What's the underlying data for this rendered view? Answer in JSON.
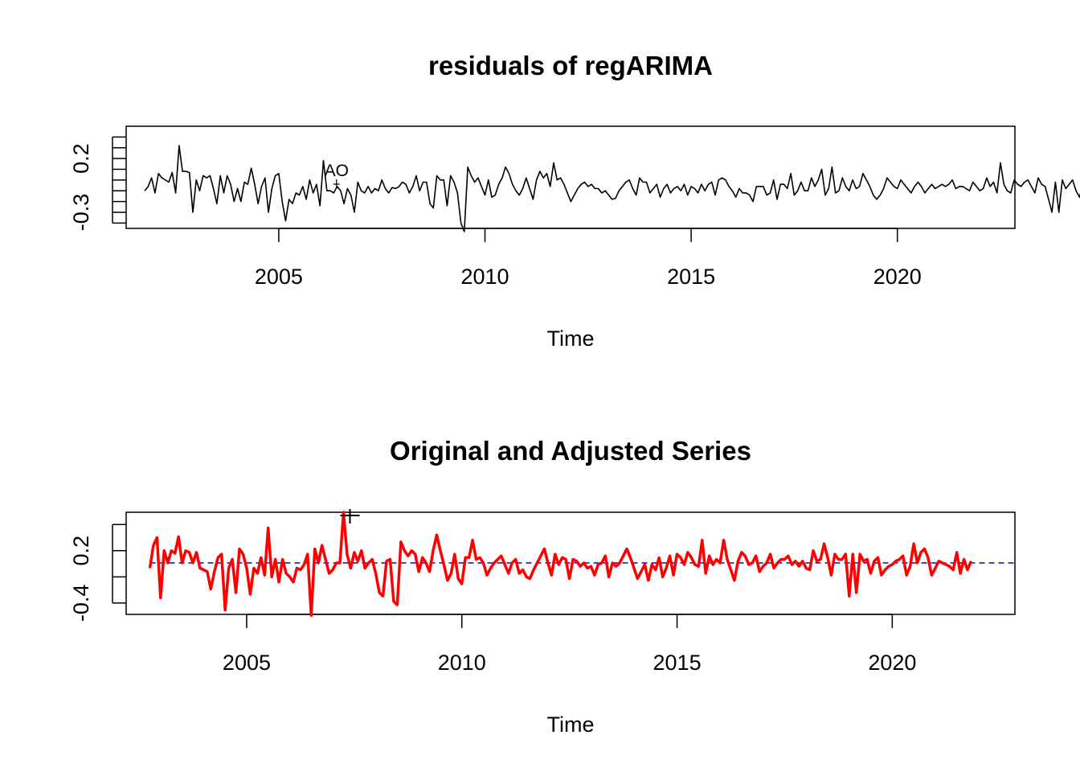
{
  "chart_data": [
    {
      "type": "line",
      "title": "residuals of regARIMA",
      "xlabel": "Time",
      "ylabel": "",
      "xlim": [
        2001.3,
        2022.85
      ],
      "ylim": [
        -0.45,
        0.5
      ],
      "x_ticks": [
        2005,
        2010,
        2015,
        2020
      ],
      "x_tick_labels": [
        "2005",
        "2010",
        "2015",
        "2020"
      ],
      "y_ticks": [
        -0.4,
        -0.3,
        -0.2,
        -0.1,
        0.0,
        0.1,
        0.2,
        0.3,
        0.4
      ],
      "y_tick_labels": [
        {
          "value": -0.3,
          "label": "-0.3"
        },
        {
          "value": 0.2,
          "label": "0.2"
        }
      ],
      "grid": false,
      "legend": "none",
      "series": [
        {
          "color": "#000000",
          "start": 2001.75,
          "step": 0.08333,
          "values": [
            -0.1,
            -0.06,
            0.02,
            -0.12,
            0.06,
            0.02,
            0.0,
            -0.02,
            0.07,
            -0.12,
            0.32,
            0.08,
            0.08,
            0.07,
            -0.3,
            0.0,
            -0.1,
            0.04,
            0.02,
            0.04,
            -0.08,
            -0.22,
            0.04,
            -0.12,
            0.04,
            -0.04,
            -0.2,
            -0.08,
            -0.2,
            -0.02,
            -0.04,
            0.11,
            -0.04,
            -0.22,
            -0.06,
            0.02,
            -0.3,
            -0.08,
            0.04,
            0.06,
            -0.2,
            -0.38,
            -0.18,
            -0.22,
            -0.12,
            -0.14,
            -0.06,
            -0.18,
            0.0,
            -0.12,
            -0.04,
            -0.24,
            0.18,
            -0.1,
            -0.1,
            -0.12,
            -0.06,
            -0.1,
            -0.22,
            -0.08,
            -0.14,
            -0.3,
            -0.02,
            -0.1,
            -0.12,
            -0.06,
            -0.12,
            -0.08,
            -0.1,
            0.0,
            -0.08,
            -0.12,
            -0.07,
            -0.08,
            -0.06,
            -0.02,
            -0.04,
            -0.12,
            -0.06,
            0.04,
            -0.1,
            -0.02,
            -0.02,
            -0.22,
            -0.26,
            0.04,
            0.0,
            0.0,
            -0.24,
            0.04,
            -0.02,
            -0.12,
            -0.4,
            -0.48,
            0.12,
            0.04,
            -0.02,
            0.02,
            -0.06,
            -0.14,
            0.0,
            -0.16,
            -0.14,
            -0.04,
            0.02,
            0.12,
            0.06,
            -0.04,
            -0.1,
            -0.14,
            -0.08,
            0.02,
            -0.08,
            -0.18,
            0.0,
            0.08,
            0.02,
            0.06,
            -0.06,
            0.16,
            0.0,
            0.02,
            -0.04,
            -0.12,
            -0.2,
            -0.14,
            -0.08,
            -0.04,
            -0.02,
            -0.06,
            -0.04,
            -0.08,
            -0.08,
            -0.12,
            -0.1,
            -0.14,
            -0.18,
            -0.17,
            -0.1,
            -0.06,
            -0.02,
            0.0,
            -0.08,
            -0.14,
            0.02,
            -0.02,
            -0.02,
            -0.12,
            -0.08,
            -0.04,
            -0.16,
            -0.08,
            -0.04,
            -0.12,
            -0.08,
            -0.06,
            -0.1,
            -0.04,
            -0.14,
            -0.06,
            -0.08,
            -0.12,
            -0.04,
            -0.1,
            -0.04,
            -0.02,
            -0.14,
            0.0,
            0.02,
            0.0,
            -0.06,
            -0.1,
            -0.16,
            -0.08,
            -0.12,
            -0.12,
            -0.14,
            -0.2,
            -0.06,
            -0.06,
            -0.06,
            -0.14,
            -0.12,
            0.0,
            -0.18,
            -0.04,
            -0.04,
            -0.08,
            0.06,
            -0.14,
            -0.1,
            -0.02,
            -0.1,
            -0.1,
            0.02,
            -0.06,
            0.0,
            0.1,
            -0.14,
            -0.08,
            0.12,
            -0.12,
            -0.1,
            0.02,
            -0.06,
            -0.1,
            0.0,
            -0.08,
            -0.06,
            0.06,
            0.0,
            -0.06,
            -0.14,
            -0.18,
            -0.14,
            -0.08,
            0.02,
            -0.02,
            -0.06,
            -0.08,
            0.0,
            -0.04,
            -0.08,
            -0.12,
            -0.06,
            -0.02,
            -0.06,
            -0.12,
            -0.08,
            -0.04,
            -0.08,
            -0.06,
            -0.04,
            -0.06,
            -0.04,
            0.0,
            -0.08,
            -0.06,
            -0.06,
            -0.08,
            -0.1,
            -0.02,
            -0.06,
            -0.1,
            -0.08,
            0.02,
            -0.06,
            -0.02,
            -0.12,
            0.16,
            -0.04,
            -0.1,
            -0.12,
            0.0,
            -0.04,
            -0.06,
            -0.02,
            0.0,
            -0.06,
            -0.12,
            0.02,
            -0.04,
            -0.06,
            -0.18,
            -0.3,
            -0.02,
            -0.3,
            0.0,
            -0.08,
            -0.04,
            0.0,
            -0.1,
            -0.16,
            -0.04,
            -0.04,
            -0.12,
            -0.12,
            -0.1,
            -0.12,
            -0.1,
            -0.08,
            -0.04,
            -0.04,
            -0.1,
            0.0,
            -0.06,
            0.08,
            -0.04,
            -0.02,
            0.02,
            -0.06,
            -0.12,
            -0.2,
            -0.1,
            -0.06,
            -0.04,
            -0.04,
            -0.12,
            -0.12,
            -0.14,
            -0.1,
            0.02,
            -0.16,
            -0.04,
            -0.14,
            -0.08,
            -0.02
          ]
        }
      ],
      "annotations": [
        {
          "text": "AO",
          "x": 2006.4
        }
      ]
    },
    {
      "type": "line",
      "title": "Original and Adjusted Series",
      "xlabel": "Time",
      "ylabel": "",
      "xlim": [
        2002.2,
        2022.85
      ],
      "ylim": [
        -0.53,
        0.64
      ],
      "x_ticks": [
        2005,
        2010,
        2015,
        2020
      ],
      "x_tick_labels": [
        "2005",
        "2010",
        "2015",
        "2020"
      ],
      "y_ticks": [
        -0.4,
        -0.1,
        0.2,
        0.5
      ],
      "y_tick_labels": [
        {
          "value": -0.4,
          "label": "-0.4"
        },
        {
          "value": 0.2,
          "label": "0.2"
        }
      ],
      "grid": false,
      "legend": "none",
      "series": [
        {
          "color": "#0000ff",
          "style": "dashed",
          "start": 2002.75,
          "step": 0.08333,
          "values": [
            0.06,
            0.06,
            0.06,
            0.06,
            0.06,
            0.06,
            0.06,
            0.06,
            0.06,
            0.06,
            0.06,
            0.06,
            0.06,
            0.06,
            0.06,
            0.06,
            0.06,
            0.06,
            0.06,
            0.06,
            0.06,
            0.06,
            0.06,
            0.06,
            0.06,
            0.06,
            0.06,
            0.06,
            0.06,
            0.06,
            0.06,
            0.06,
            0.06,
            0.06,
            0.06,
            0.06,
            0.06,
            0.06,
            0.06,
            0.06,
            0.06,
            0.06,
            0.06,
            0.06,
            0.06,
            0.06,
            0.06,
            0.06,
            0.06,
            0.06,
            0.06,
            0.06,
            0.06,
            0.06,
            0.06,
            0.06,
            0.06,
            0.06,
            0.06,
            0.06,
            0.06,
            0.06,
            0.06,
            0.06,
            0.06,
            0.06,
            0.06,
            0.06,
            0.06,
            0.06,
            0.06,
            0.06,
            0.06,
            0.06,
            0.06,
            0.06,
            0.06,
            0.06,
            0.06,
            0.06,
            0.06,
            0.06,
            0.06,
            0.06,
            0.06,
            0.06,
            0.06,
            0.06,
            0.06,
            0.06,
            0.06,
            0.06,
            0.06,
            0.06,
            0.06,
            0.06,
            0.06,
            0.06,
            0.06,
            0.06,
            0.06,
            0.06,
            0.06,
            0.06,
            0.06,
            0.06,
            0.06,
            0.06,
            0.06,
            0.06,
            0.06,
            0.06,
            0.06,
            0.06,
            0.06,
            0.06,
            0.06,
            0.06,
            0.06,
            0.06,
            0.06,
            0.06,
            0.06,
            0.06,
            0.06,
            0.06,
            0.06,
            0.06,
            0.06,
            0.06,
            0.06,
            0.06,
            0.06,
            0.06,
            0.06,
            0.06,
            0.06,
            0.06,
            0.06,
            0.06,
            0.06,
            0.06,
            0.06,
            0.06,
            0.06,
            0.06,
            0.06,
            0.06,
            0.06,
            0.06,
            0.06,
            0.06,
            0.06,
            0.06,
            0.06,
            0.06,
            0.06,
            0.06,
            0.06,
            0.06,
            0.06,
            0.06,
            0.06,
            0.06,
            0.06,
            0.06,
            0.06,
            0.06,
            0.06,
            0.06,
            0.06,
            0.06,
            0.06,
            0.06,
            0.06,
            0.06,
            0.06,
            0.06,
            0.06,
            0.06,
            0.06,
            0.06,
            0.06,
            0.06,
            0.06,
            0.06,
            0.06,
            0.06,
            0.06,
            0.06,
            0.06,
            0.06,
            0.06,
            0.06,
            0.06,
            0.06,
            0.06,
            0.06,
            0.06,
            0.06,
            0.06,
            0.06,
            0.06,
            0.06,
            0.06,
            0.06,
            0.06,
            0.06,
            0.06,
            0.06,
            0.06,
            0.06,
            0.06,
            0.06,
            0.06,
            0.06,
            0.06,
            0.06,
            0.06,
            0.06,
            0.06,
            0.06,
            0.06,
            0.06,
            0.06,
            0.06,
            0.06,
            0.06,
            0.06,
            0.06,
            0.06,
            0.06,
            0.06,
            0.06,
            0.06,
            0.06,
            0.06,
            0.06,
            0.06,
            0.06,
            0.06,
            0.06
          ]
        },
        {
          "color": "#ff0000",
          "start": 2002.75,
          "step": 0.08333,
          "values": [
            0.0,
            0.26,
            0.35,
            -0.34,
            0.2,
            0.06,
            0.2,
            0.17,
            0.36,
            0.06,
            0.2,
            0.18,
            0.06,
            0.18,
            0.0,
            -0.02,
            -0.04,
            -0.24,
            -0.04,
            0.12,
            0.16,
            -0.48,
            0.0,
            0.1,
            -0.28,
            0.22,
            0.16,
            0.0,
            -0.3,
            0.0,
            -0.06,
            0.12,
            -0.08,
            0.46,
            -0.1,
            0.1,
            -0.16,
            0.1,
            -0.06,
            -0.1,
            -0.16,
            0.0,
            -0.02,
            0.04,
            0.16,
            -0.54,
            0.22,
            0.06,
            0.26,
            0.1,
            -0.06,
            -0.02,
            0.06,
            0.06,
            0.64,
            0.16,
            0.0,
            0.18,
            0.08,
            0.2,
            0.0,
            0.06,
            0.1,
            -0.06,
            -0.28,
            -0.32,
            0.08,
            0.1,
            -0.38,
            -0.42,
            0.3,
            0.2,
            0.14,
            0.2,
            0.16,
            -0.04,
            0.12,
            0.06,
            -0.04,
            0.2,
            0.38,
            0.2,
            0.04,
            -0.14,
            -0.06,
            0.16,
            -0.12,
            -0.18,
            0.12,
            0.12,
            0.32,
            0.1,
            0.12,
            0.06,
            -0.08,
            0.0,
            0.06,
            0.1,
            0.14,
            0.04,
            -0.06,
            0.06,
            0.1,
            -0.06,
            -0.02,
            -0.1,
            -0.12,
            -0.02,
            0.06,
            0.14,
            0.22,
            0.06,
            -0.08,
            0.16,
            0.04,
            0.12,
            0.1,
            -0.12,
            0.1,
            0.08,
            0.02,
            0.06,
            0.0,
            0.02,
            -0.08,
            0.04,
            0.06,
            0.14,
            -0.1,
            0.06,
            0.02,
            0.06,
            0.14,
            0.22,
            0.12,
            0.0,
            -0.12,
            -0.04,
            0.04,
            -0.14,
            0.04,
            -0.02,
            0.12,
            -0.1,
            0.0,
            0.14,
            -0.08,
            0.16,
            0.12,
            0.04,
            0.18,
            0.12,
            0.04,
            0.02,
            0.32,
            -0.06,
            0.14,
            0.04,
            0.1,
            0.06,
            0.32,
            0.1,
            -0.02,
            -0.14,
            0.08,
            0.18,
            0.14,
            0.04,
            0.06,
            0.14,
            -0.04,
            0.02,
            0.06,
            0.16,
            0.0,
            0.06,
            0.1,
            0.1,
            0.14,
            0.04,
            0.08,
            0.02,
            0.08,
            0.0,
            -0.02,
            0.2,
            0.08,
            0.1,
            0.28,
            0.12,
            -0.08,
            0.16,
            0.1,
            0.1,
            0.16,
            -0.32,
            0.16,
            -0.28,
            0.16,
            0.08,
            0.1,
            -0.06,
            0.08,
            0.12,
            -0.08,
            -0.02,
            0.02,
            0.04,
            0.08,
            0.1,
            0.14,
            -0.08,
            0.02,
            0.28,
            0.06,
            0.18,
            0.22,
            0.12,
            -0.08,
            0.0,
            0.08,
            0.06,
            0.04,
            0.02,
            -0.02,
            0.18,
            -0.06,
            0.1,
            -0.02,
            0.08
          ]
        }
      ],
      "annotations": [
        {
          "text": "+",
          "x": 2007.4
        }
      ]
    }
  ]
}
